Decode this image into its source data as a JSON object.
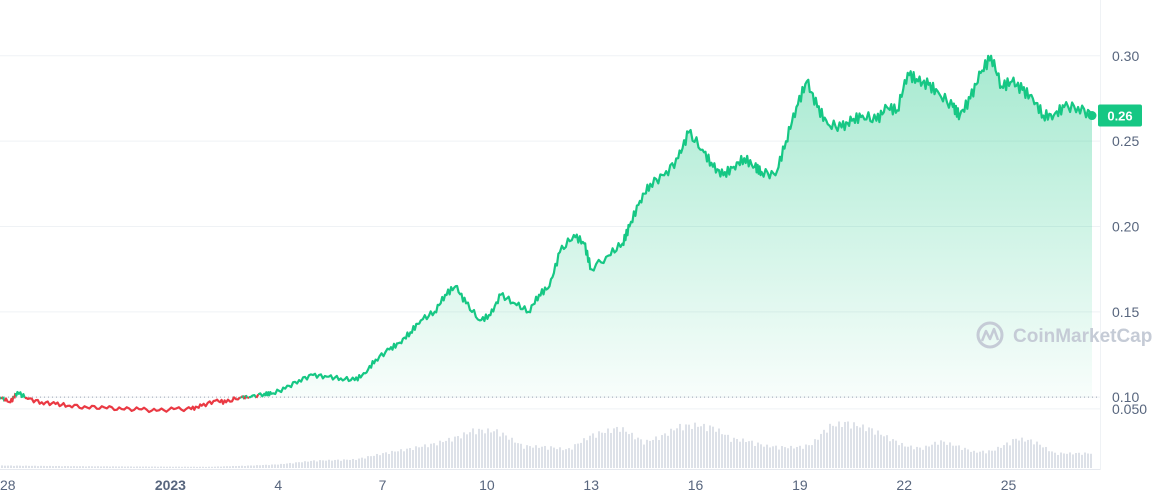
{
  "watermark": {
    "text": "CoinMarketCap"
  },
  "chart_data": {
    "type": "area",
    "title": "",
    "xlabel": "",
    "ylabel": "",
    "grid": true,
    "y_ticks": [
      "0.30",
      "0.25",
      "0.20",
      "0.15",
      "0.10"
    ],
    "y_tick_values": [
      0.3,
      0.25,
      0.2,
      0.15,
      0.1
    ],
    "ylim": [
      0.0585,
      0.3327
    ],
    "volume_tick": {
      "label": "0.050",
      "value": 0.05
    },
    "x_ticks": [
      "28",
      "2023",
      "4",
      "7",
      "10",
      "13",
      "16",
      "19",
      "22",
      "25"
    ],
    "x_tick_days": [
      0,
      4.9,
      8,
      11,
      14,
      17,
      20,
      23,
      26,
      29
    ],
    "xlim": [
      0,
      31.4
    ],
    "baseline_price": 0.1,
    "current_price": {
      "label": "0.26",
      "value": 0.265
    },
    "colors": {
      "up": "#16c784",
      "down": "#ea3943",
      "volume": "#dde1e8",
      "grid": "#eff2f5",
      "text": "#58667e"
    },
    "series": [
      {
        "x": [
          0,
          0.3,
          0.5,
          0.8,
          1.2,
          1.6,
          2,
          2.5,
          3,
          3.5,
          4,
          4.5,
          5,
          5.5,
          5.8,
          6.2,
          6.5,
          6.9,
          7.2,
          7.6,
          7.8,
          8.2,
          8.6,
          9,
          9.4,
          9.8,
          10.2,
          10.5,
          10.8,
          11.2,
          11.5,
          11.8,
          12.1,
          12.5,
          12.8,
          13.1,
          13.4,
          13.8,
          14.1,
          14.4,
          14.8,
          15.2,
          15.5,
          15.8,
          16.1,
          16.5,
          16.8,
          17,
          17.5,
          17.9,
          18.1,
          18.4,
          18.7,
          19.1,
          19.5,
          19.8,
          20.2,
          20.5,
          20.8,
          21.1,
          21.4,
          21.7,
          21.9,
          22.3,
          22.6,
          22.9,
          23.2,
          23.5,
          23.8,
          24.2,
          24.5,
          24.8,
          25.2,
          25.5,
          25.8,
          26.1,
          26.4,
          26.7,
          27,
          27.4,
          27.6,
          27.9,
          28.2,
          28.5,
          28.8,
          29.1,
          29.4,
          29.7,
          30,
          30.3,
          30.6,
          31,
          31.4
        ],
        "y": [
          0.1,
          0.097,
          0.103,
          0.099,
          0.097,
          0.096,
          0.095,
          0.094,
          0.094,
          0.093,
          0.093,
          0.092,
          0.093,
          0.093,
          0.095,
          0.098,
          0.097,
          0.1,
          0.1,
          0.102,
          0.102,
          0.105,
          0.11,
          0.113,
          0.112,
          0.111,
          0.11,
          0.114,
          0.122,
          0.128,
          0.132,
          0.138,
          0.145,
          0.15,
          0.16,
          0.165,
          0.155,
          0.145,
          0.148,
          0.16,
          0.155,
          0.15,
          0.16,
          0.165,
          0.185,
          0.195,
          0.19,
          0.175,
          0.183,
          0.19,
          0.2,
          0.215,
          0.225,
          0.23,
          0.24,
          0.255,
          0.245,
          0.235,
          0.23,
          0.235,
          0.24,
          0.235,
          0.232,
          0.23,
          0.25,
          0.27,
          0.285,
          0.27,
          0.26,
          0.258,
          0.262,
          0.265,
          0.262,
          0.27,
          0.268,
          0.29,
          0.285,
          0.283,
          0.278,
          0.27,
          0.265,
          0.275,
          0.29,
          0.3,
          0.282,
          0.285,
          0.28,
          0.275,
          0.265,
          0.265,
          0.27,
          0.27,
          0.265
        ]
      }
    ],
    "volume": {
      "x": [
        0,
        2,
        4,
        6,
        7.2,
        8,
        9,
        10.2,
        11,
        11.8,
        12.5,
        13.2,
        13.6,
        14.3,
        15,
        15.8,
        16.3,
        17,
        17.8,
        18.5,
        19,
        19.5,
        20,
        20.5,
        21,
        21.5,
        22,
        22.5,
        22.9,
        23.3,
        23.8,
        24.3,
        25,
        25.5,
        26,
        26.5,
        27,
        27.5,
        28,
        28.5,
        28.8,
        29.2,
        29.7,
        30.3,
        31,
        31.4
      ],
      "y": [
        0.002,
        0.0015,
        0.0012,
        0.001,
        0.002,
        0.003,
        0.006,
        0.007,
        0.012,
        0.016,
        0.02,
        0.026,
        0.031,
        0.03,
        0.018,
        0.017,
        0.015,
        0.027,
        0.033,
        0.021,
        0.026,
        0.034,
        0.035,
        0.033,
        0.024,
        0.022,
        0.018,
        0.017,
        0.017,
        0.019,
        0.034,
        0.037,
        0.032,
        0.025,
        0.018,
        0.016,
        0.022,
        0.018,
        0.013,
        0.014,
        0.018,
        0.024,
        0.022,
        0.012,
        0.012,
        0.012
      ]
    }
  }
}
